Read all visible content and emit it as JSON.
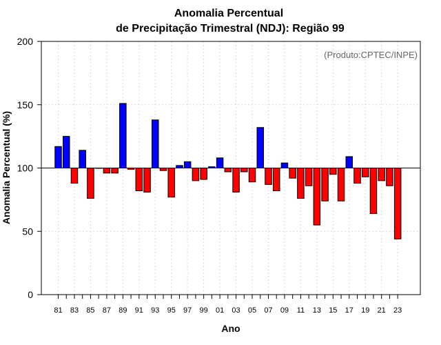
{
  "chart_data": {
    "type": "bar",
    "title_line1": "Anomalia Percentual",
    "title_line2": "de Precipitação Trimestral (NDJ): Região 99",
    "xlabel": "Ano",
    "ylabel": "Anomalia Percentual (%)",
    "credit": "(Produto:CPTEC/INPE)",
    "baseline": 100,
    "ylim": [
      0,
      200
    ],
    "yticks": [
      "0",
      "50",
      "100",
      "150",
      "200"
    ],
    "colors": {
      "above": "#0000ff",
      "below": "#ff0000"
    },
    "categories": [
      "81",
      "82",
      "83",
      "84",
      "85",
      "86",
      "87",
      "88",
      "89",
      "90",
      "91",
      "92",
      "93",
      "94",
      "95",
      "96",
      "97",
      "98",
      "99",
      "00",
      "01",
      "02",
      "03",
      "04",
      "05",
      "06",
      "07",
      "08",
      "09",
      "10",
      "11",
      "12",
      "13",
      "14",
      "15",
      "16",
      "17",
      "18",
      "19",
      "20",
      "21",
      "22",
      "23"
    ],
    "xtick_labels": [
      "81",
      "83",
      "85",
      "87",
      "89",
      "91",
      "93",
      "95",
      "97",
      "99",
      "01",
      "03",
      "05",
      "07",
      "09",
      "11",
      "13",
      "15",
      "17",
      "19",
      "21",
      "23"
    ],
    "values": [
      117,
      125,
      88,
      114,
      76,
      100,
      96,
      96,
      151,
      99,
      82,
      81,
      138,
      98,
      77,
      102,
      105,
      90,
      91,
      101,
      108,
      97,
      81,
      97,
      89,
      132,
      87,
      82,
      104,
      92,
      76,
      86,
      55,
      74,
      95,
      74,
      109,
      88,
      93,
      64,
      90,
      86,
      44
    ]
  }
}
